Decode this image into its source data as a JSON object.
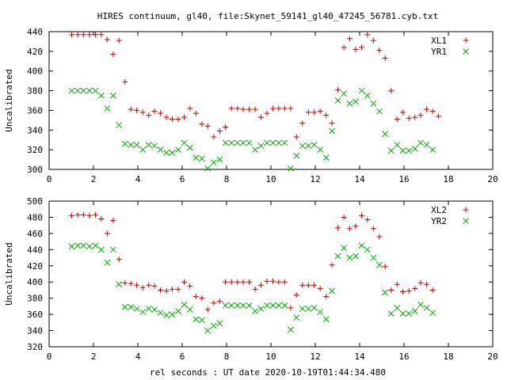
{
  "figure": {
    "title": "HIRES continuum, gl40, file:Skynet_59141_gl40_47245_56781.cyb.txt",
    "xlabel": "rel seconds : UT date 2020-10-19T01:44:34.480"
  },
  "chart_data": [
    {
      "type": "scatter",
      "ylabel": "Uncalibrated",
      "xlim": [
        0,
        20
      ],
      "ylim": [
        300,
        440
      ],
      "xticks": [
        0,
        2,
        4,
        6,
        8,
        10,
        12,
        14,
        16,
        18,
        20
      ],
      "yticks": [
        300,
        320,
        340,
        360,
        380,
        400,
        420,
        440
      ],
      "grid": false,
      "legend_position": "top-right",
      "series": [
        {
          "name": "XL1",
          "marker": "+",
          "color": "#cc0000",
          "points": [
            [
              1.02,
              437
            ],
            [
              1.29,
              437
            ],
            [
              1.55,
              437
            ],
            [
              1.82,
              437
            ],
            [
              2.09,
              437
            ],
            [
              2.35,
              437
            ],
            [
              2.62,
              432
            ],
            [
              2.89,
              417
            ],
            [
              3.15,
              431
            ],
            [
              3.42,
              389
            ],
            [
              3.69,
              361
            ],
            [
              3.95,
              360
            ],
            [
              4.22,
              358
            ],
            [
              4.49,
              355
            ],
            [
              4.75,
              359
            ],
            [
              5.02,
              357
            ],
            [
              5.29,
              353
            ],
            [
              5.55,
              351
            ],
            [
              5.82,
              351
            ],
            [
              6.09,
              353
            ],
            [
              6.35,
              362
            ],
            [
              6.62,
              357
            ],
            [
              6.89,
              346
            ],
            [
              7.15,
              344
            ],
            [
              7.42,
              333
            ],
            [
              7.69,
              339
            ],
            [
              7.95,
              343
            ],
            [
              8.22,
              362
            ],
            [
              8.49,
              362
            ],
            [
              8.75,
              361
            ],
            [
              9.02,
              361
            ],
            [
              9.29,
              361
            ],
            [
              9.55,
              353
            ],
            [
              9.82,
              357
            ],
            [
              10.09,
              362
            ],
            [
              10.35,
              362
            ],
            [
              10.62,
              362
            ],
            [
              10.89,
              362
            ],
            [
              11.15,
              333
            ],
            [
              11.42,
              347
            ],
            [
              11.69,
              358
            ],
            [
              11.95,
              358
            ],
            [
              12.22,
              359
            ],
            [
              12.49,
              355
            ],
            [
              12.75,
              347
            ],
            [
              13.02,
              381
            ],
            [
              13.29,
              424
            ],
            [
              13.55,
              433
            ],
            [
              13.82,
              422
            ],
            [
              14.09,
              424
            ],
            [
              14.35,
              437
            ],
            [
              14.62,
              431
            ],
            [
              14.89,
              421
            ],
            [
              15.15,
              413
            ],
            [
              15.42,
              380
            ],
            [
              15.69,
              351
            ],
            [
              15.95,
              358
            ],
            [
              16.22,
              352
            ],
            [
              16.49,
              353
            ],
            [
              16.75,
              355
            ],
            [
              17.02,
              361
            ],
            [
              17.29,
              359
            ],
            [
              17.55,
              354
            ]
          ]
        },
        {
          "name": "YR1",
          "marker": "x",
          "color": "#00aa00",
          "points": [
            [
              1.02,
              380
            ],
            [
              1.29,
              380
            ],
            [
              1.55,
              380
            ],
            [
              1.82,
              380
            ],
            [
              2.09,
              380
            ],
            [
              2.35,
              375
            ],
            [
              2.62,
              362
            ],
            [
              2.89,
              375
            ],
            [
              3.15,
              345
            ],
            [
              3.42,
              326
            ],
            [
              3.69,
              325
            ],
            [
              3.95,
              325
            ],
            [
              4.22,
              320
            ],
            [
              4.49,
              325
            ],
            [
              4.75,
              324
            ],
            [
              5.02,
              320
            ],
            [
              5.29,
              317
            ],
            [
              5.55,
              317
            ],
            [
              5.82,
              320
            ],
            [
              6.09,
              327
            ],
            [
              6.35,
              322
            ],
            [
              6.62,
              312
            ],
            [
              6.89,
              311
            ],
            [
              7.15,
              301
            ],
            [
              7.42,
              307
            ],
            [
              7.69,
              310
            ],
            [
              7.95,
              327
            ],
            [
              8.22,
              327
            ],
            [
              8.49,
              327
            ],
            [
              8.75,
              327
            ],
            [
              9.02,
              327
            ],
            [
              9.29,
              320
            ],
            [
              9.55,
              324
            ],
            [
              9.82,
              327
            ],
            [
              10.09,
              327
            ],
            [
              10.35,
              327
            ],
            [
              10.62,
              327
            ],
            [
              10.89,
              301
            ],
            [
              11.15,
              314
            ],
            [
              11.42,
              324
            ],
            [
              11.69,
              324
            ],
            [
              11.95,
              325
            ],
            [
              12.22,
              320
            ],
            [
              12.49,
              312
            ],
            [
              12.75,
              339
            ],
            [
              13.02,
              370
            ],
            [
              13.29,
              377
            ],
            [
              13.55,
              367
            ],
            [
              13.82,
              369
            ],
            [
              14.09,
              380
            ],
            [
              14.35,
              375
            ],
            [
              14.62,
              367
            ],
            [
              14.89,
              359
            ],
            [
              15.15,
              336
            ],
            [
              15.42,
              319
            ],
            [
              15.69,
              325
            ],
            [
              15.95,
              319
            ],
            [
              16.22,
              319
            ],
            [
              16.49,
              321
            ],
            [
              16.75,
              327
            ],
            [
              17.02,
              325
            ],
            [
              17.29,
              320
            ]
          ]
        }
      ]
    },
    {
      "type": "scatter",
      "ylabel": "Uncalibrated",
      "xlim": [
        0,
        20
      ],
      "ylim": [
        320,
        500
      ],
      "xticks": [
        0,
        2,
        4,
        6,
        8,
        10,
        12,
        14,
        16,
        18,
        20
      ],
      "yticks": [
        320,
        340,
        360,
        380,
        400,
        420,
        440,
        460,
        480,
        500
      ],
      "grid": false,
      "legend_position": "top-right",
      "series": [
        {
          "name": "XL2",
          "marker": "+",
          "color": "#cc0000",
          "points": [
            [
              1.02,
              482
            ],
            [
              1.29,
              483
            ],
            [
              1.55,
              483
            ],
            [
              1.82,
              482
            ],
            [
              2.09,
              483
            ],
            [
              2.35,
              478
            ],
            [
              2.62,
              460
            ],
            [
              2.89,
              476
            ],
            [
              3.15,
              428
            ],
            [
              3.42,
              399
            ],
            [
              3.69,
              398
            ],
            [
              3.95,
              396
            ],
            [
              4.22,
              393
            ],
            [
              4.49,
              396
            ],
            [
              4.75,
              395
            ],
            [
              5.02,
              390
            ],
            [
              5.29,
              389
            ],
            [
              5.55,
              391
            ],
            [
              5.82,
              391
            ],
            [
              6.09,
              400
            ],
            [
              6.35,
              395
            ],
            [
              6.62,
              382
            ],
            [
              6.89,
              380
            ],
            [
              7.15,
              366
            ],
            [
              7.42,
              374
            ],
            [
              7.69,
              376
            ],
            [
              7.95,
              400
            ],
            [
              8.22,
              400
            ],
            [
              8.49,
              400
            ],
            [
              8.75,
              400
            ],
            [
              9.02,
              400
            ],
            [
              9.29,
              391
            ],
            [
              9.55,
              396
            ],
            [
              9.82,
              401
            ],
            [
              10.09,
              401
            ],
            [
              10.35,
              400
            ],
            [
              10.62,
              400
            ],
            [
              10.89,
              368
            ],
            [
              11.15,
              384
            ],
            [
              11.42,
              396
            ],
            [
              11.69,
              396
            ],
            [
              11.95,
              396
            ],
            [
              12.22,
              392
            ],
            [
              12.49,
              382
            ],
            [
              12.75,
              421
            ],
            [
              13.02,
              467
            ],
            [
              13.29,
              480
            ],
            [
              13.55,
              466
            ],
            [
              13.82,
              469
            ],
            [
              14.09,
              482
            ],
            [
              14.35,
              477
            ],
            [
              14.62,
              466
            ],
            [
              14.89,
              456
            ],
            [
              15.15,
              419
            ],
            [
              15.42,
              390
            ],
            [
              15.69,
              397
            ],
            [
              15.95,
              388
            ],
            [
              16.22,
              389
            ],
            [
              16.49,
              392
            ],
            [
              16.75,
              399
            ],
            [
              17.02,
              397
            ],
            [
              17.29,
              390
            ]
          ]
        },
        {
          "name": "YR2",
          "marker": "x",
          "color": "#00aa00",
          "points": [
            [
              1.02,
              444
            ],
            [
              1.29,
              445
            ],
            [
              1.55,
              445
            ],
            [
              1.82,
              444
            ],
            [
              2.09,
              445
            ],
            [
              2.35,
              440
            ],
            [
              2.62,
              424
            ],
            [
              2.89,
              440
            ],
            [
              3.15,
              397
            ],
            [
              3.42,
              369
            ],
            [
              3.69,
              369
            ],
            [
              3.95,
              367
            ],
            [
              4.22,
              363
            ],
            [
              4.49,
              367
            ],
            [
              4.75,
              366
            ],
            [
              5.02,
              362
            ],
            [
              5.29,
              359
            ],
            [
              5.55,
              360
            ],
            [
              5.82,
              364
            ],
            [
              6.09,
              372
            ],
            [
              6.35,
              366
            ],
            [
              6.62,
              354
            ],
            [
              6.89,
              353
            ],
            [
              7.15,
              340
            ],
            [
              7.42,
              346
            ],
            [
              7.69,
              349
            ],
            [
              7.95,
              371
            ],
            [
              8.22,
              371
            ],
            [
              8.49,
              371
            ],
            [
              8.75,
              371
            ],
            [
              9.02,
              371
            ],
            [
              9.29,
              364
            ],
            [
              9.55,
              367
            ],
            [
              9.82,
              371
            ],
            [
              10.09,
              371
            ],
            [
              10.35,
              371
            ],
            [
              10.62,
              371
            ],
            [
              10.89,
              341
            ],
            [
              11.15,
              356
            ],
            [
              11.42,
              367
            ],
            [
              11.69,
              367
            ],
            [
              11.95,
              368
            ],
            [
              12.22,
              363
            ],
            [
              12.49,
              354
            ],
            [
              12.75,
              389
            ],
            [
              13.02,
              432
            ],
            [
              13.29,
              442
            ],
            [
              13.55,
              430
            ],
            [
              13.82,
              432
            ],
            [
              14.09,
              445
            ],
            [
              14.35,
              440
            ],
            [
              14.62,
              430
            ],
            [
              14.89,
              421
            ],
            [
              15.15,
              387
            ],
            [
              15.42,
              361
            ],
            [
              15.69,
              368
            ],
            [
              15.95,
              361
            ],
            [
              16.22,
              361
            ],
            [
              16.49,
              364
            ],
            [
              16.75,
              372
            ],
            [
              17.02,
              368
            ],
            [
              17.29,
              362
            ]
          ]
        }
      ]
    }
  ]
}
